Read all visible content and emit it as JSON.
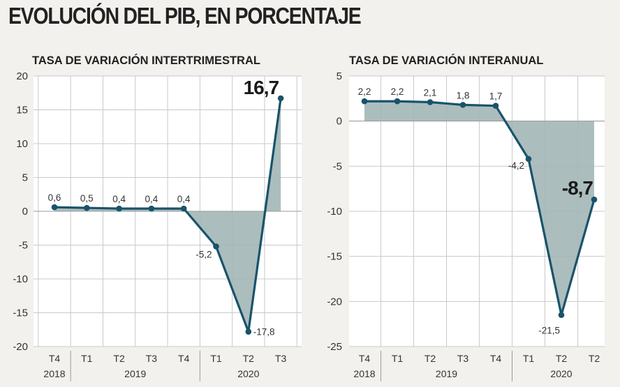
{
  "title": "EVOLUCIÓN DEL PIB, EN PORCENTAJE",
  "chart_data": [
    {
      "type": "line",
      "title": "TASA DE VARIACIÓN INTERTRIMESTRAL",
      "xlabel": "",
      "ylabel": "",
      "categories": [
        "T4",
        "T1",
        "T2",
        "T3",
        "T4",
        "T1",
        "T2",
        "T3"
      ],
      "years": [
        {
          "label": "2018",
          "from": 0,
          "to": 0
        },
        {
          "label": "2019",
          "from": 1,
          "to": 4
        },
        {
          "label": "2020",
          "from": 5,
          "to": 7
        }
      ],
      "values": [
        0.6,
        0.5,
        0.4,
        0.4,
        0.4,
        -5.2,
        -17.8,
        16.7
      ],
      "value_labels": [
        "0,6",
        "0,5",
        "0,4",
        "0,4",
        "0,4",
        "-5,2",
        "-17,8",
        "16,7"
      ],
      "highlight_index": 7,
      "ylim": [
        -20,
        20
      ],
      "yticks": [
        20,
        15,
        10,
        5,
        0,
        -5,
        -10,
        -15,
        -20
      ],
      "grid": true,
      "area_fill": true
    },
    {
      "type": "line",
      "title": "TASA DE VARIACIÓN INTERANUAL",
      "xlabel": "",
      "ylabel": "",
      "categories": [
        "T4",
        "T1",
        "T2",
        "T3",
        "T4",
        "T1",
        "T2",
        "T2"
      ],
      "years": [
        {
          "label": "2018",
          "from": 0,
          "to": 0
        },
        {
          "label": "2019",
          "from": 1,
          "to": 4
        },
        {
          "label": "2020",
          "from": 5,
          "to": 7
        }
      ],
      "values": [
        2.2,
        2.2,
        2.1,
        1.8,
        1.7,
        -4.2,
        -21.5,
        -8.7
      ],
      "value_labels": [
        "2,2",
        "2,2",
        "2,1",
        "1,8",
        "1,7",
        "-4,2",
        "-21,5",
        "-8,7"
      ],
      "highlight_index": 7,
      "ylim": [
        -25,
        5
      ],
      "yticks": [
        5,
        0,
        -5,
        -10,
        -15,
        -20,
        -25
      ],
      "grid": true,
      "area_fill": true
    }
  ],
  "colors": {
    "line": "#19536b",
    "area": "#a3b6b6",
    "grid": "#c9c9c9",
    "plot_bg": "#ffffff",
    "page_bg": "#f2f1ee"
  }
}
